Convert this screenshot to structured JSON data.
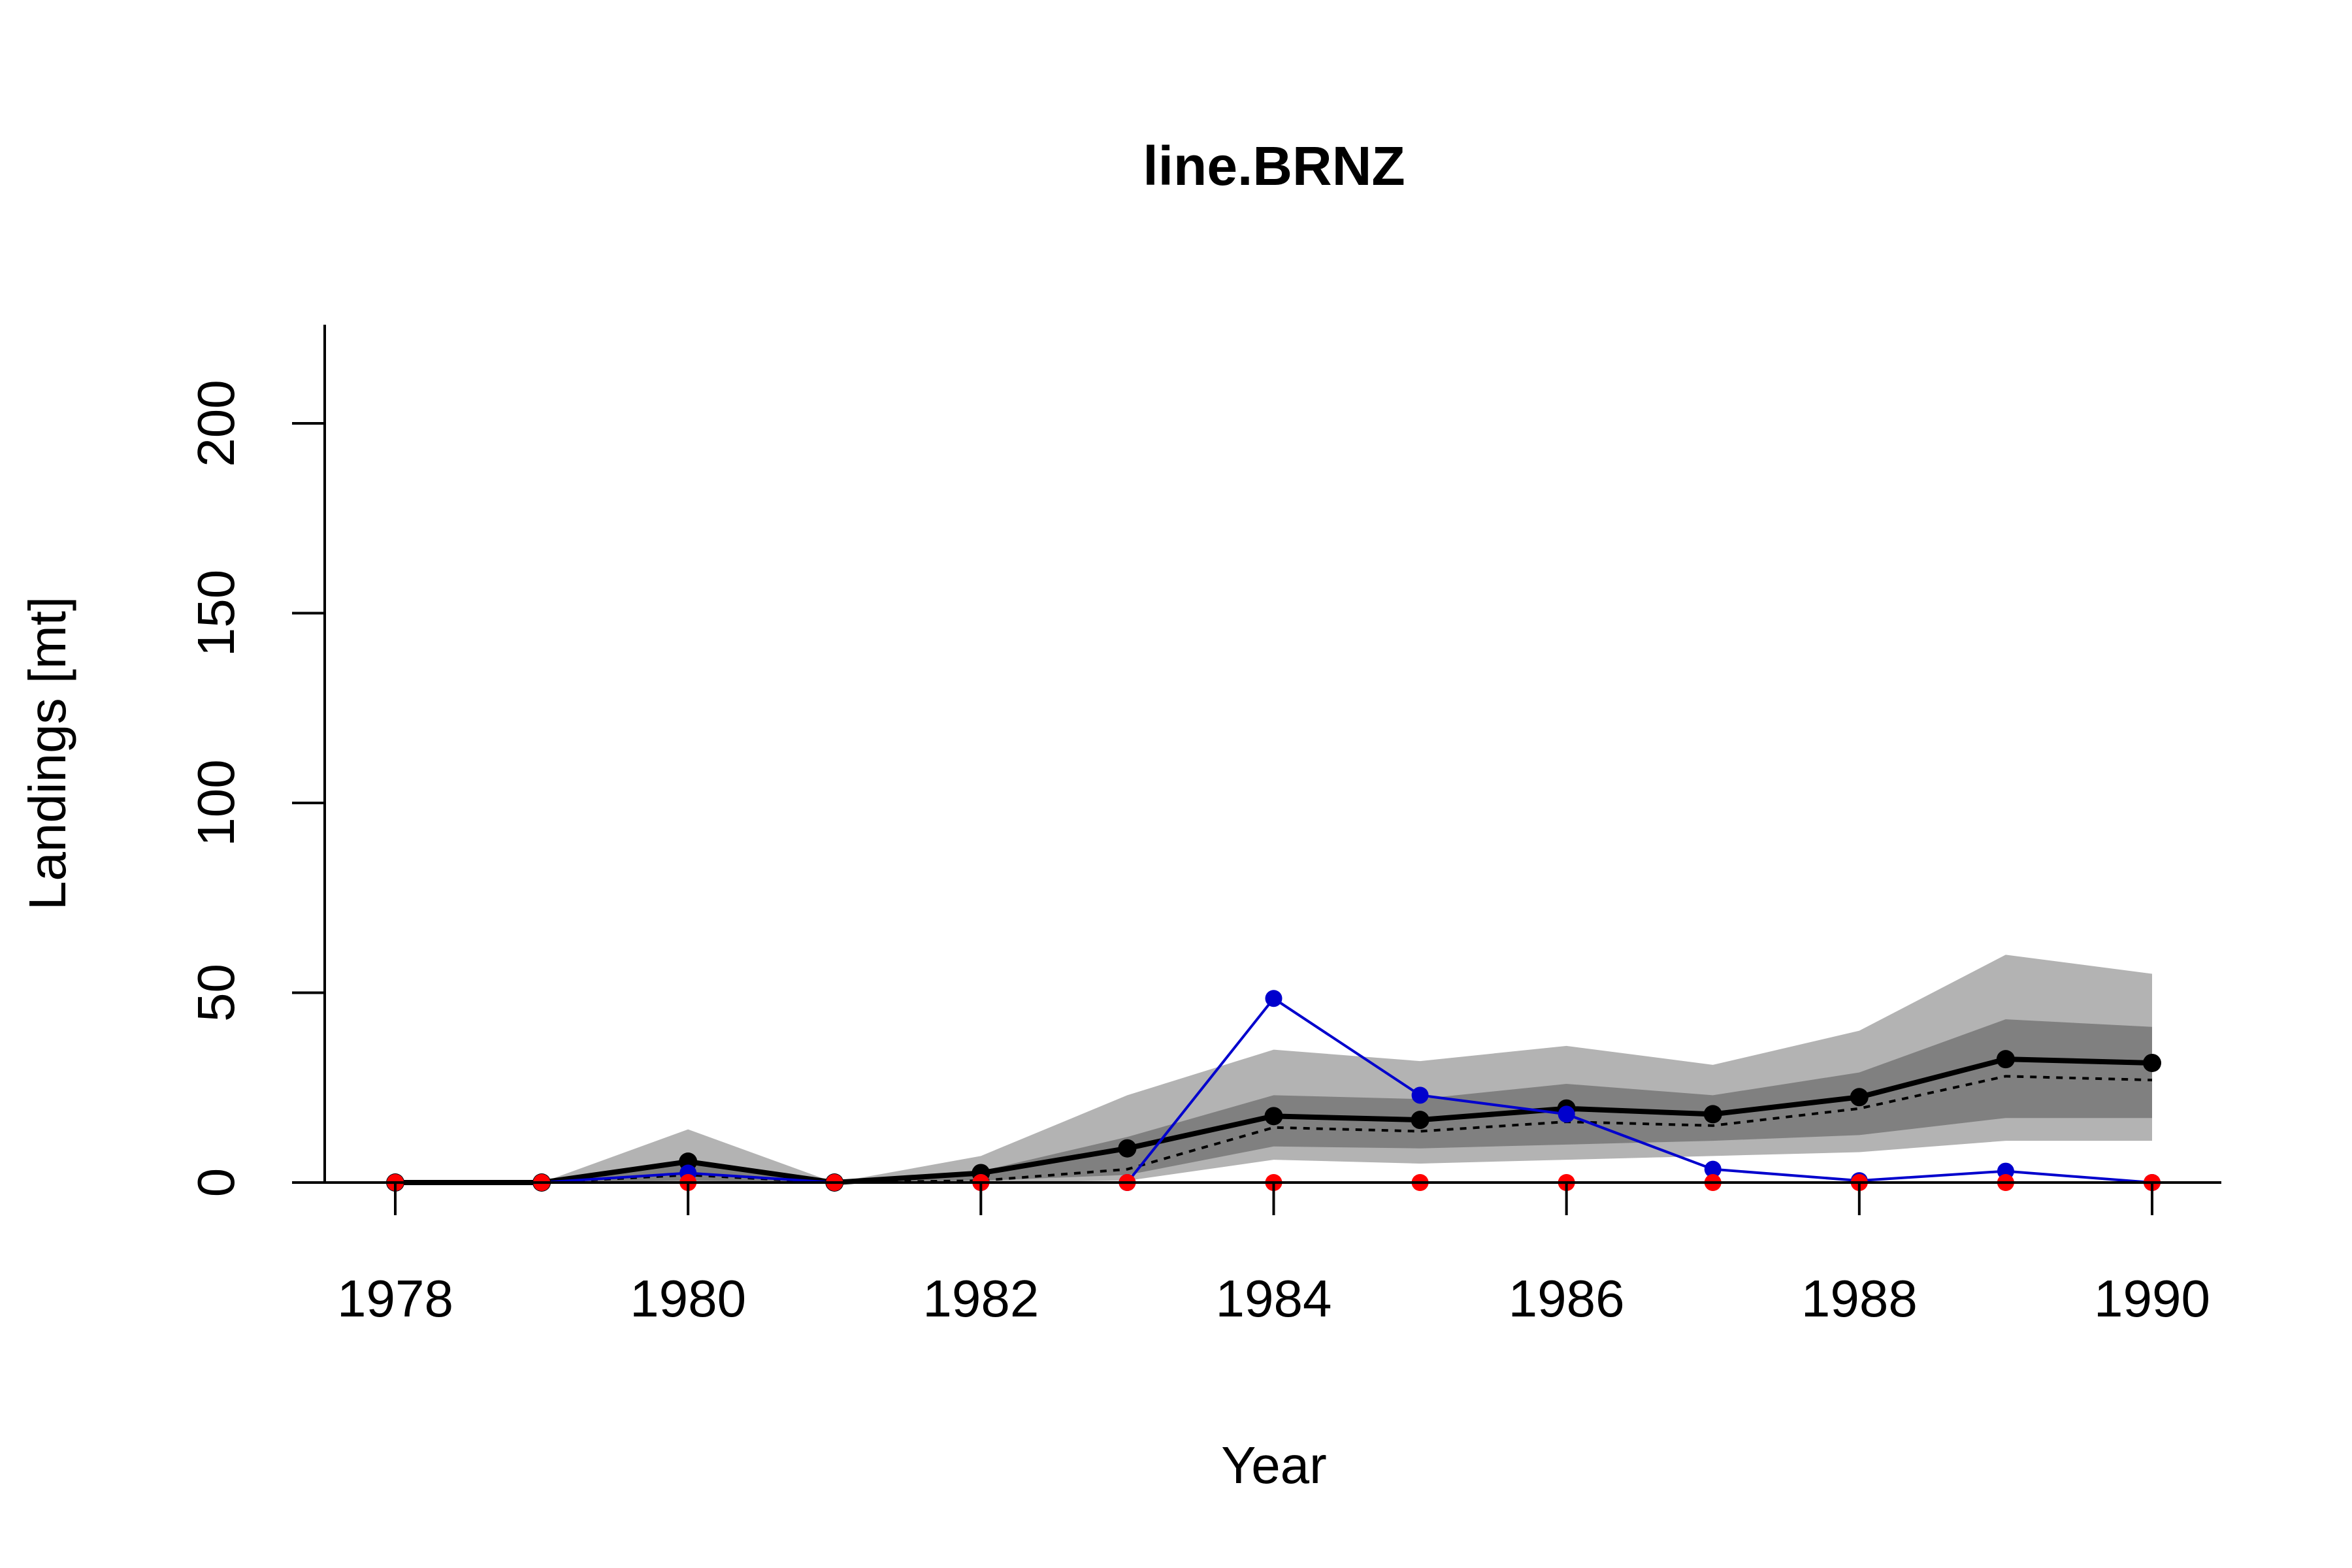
{
  "chart_data": {
    "type": "line",
    "title": "line.BRNZ",
    "xlabel": "Year",
    "ylabel": "Landings [mt]",
    "x": [
      1978,
      1979,
      1980,
      1981,
      1982,
      1983,
      1984,
      1985,
      1986,
      1987,
      1988,
      1989,
      1990
    ],
    "xticks": [
      "1978",
      "1980",
      "1982",
      "1984",
      "1986",
      "1988",
      "1990"
    ],
    "yticks": [
      "0",
      "50",
      "100",
      "150",
      "200"
    ],
    "xlim": [
      1977.5,
      1990.5
    ],
    "ylim": [
      0,
      225
    ],
    "grid": false,
    "bands": [
      {
        "role": "outer interval",
        "color": "#b3b3b3",
        "lower": [
          0,
          0,
          0,
          0,
          0,
          0.5,
          6,
          5,
          6,
          7,
          8,
          11,
          11
        ],
        "upper": [
          0,
          0,
          14,
          0,
          7,
          23,
          35,
          32,
          36,
          31,
          40,
          60,
          55
        ]
      },
      {
        "role": "inner interval",
        "color": "#808080",
        "lower": [
          0,
          0,
          0.5,
          0,
          0.5,
          2,
          9.5,
          9,
          10,
          11,
          12.5,
          17,
          17
        ],
        "upper": [
          0,
          0,
          6,
          0,
          3,
          12,
          23,
          22,
          26,
          23,
          29,
          43,
          41
        ]
      }
    ],
    "series": [
      {
        "color": "#000000",
        "style": "solid-thick",
        "markers": true,
        "values": [
          0,
          0,
          5.5,
          0,
          2.5,
          9,
          17.5,
          16.5,
          19.5,
          18,
          22.5,
          32.5,
          31.5
        ]
      },
      {
        "color": "#000000",
        "style": "dotted",
        "markers": false,
        "values": [
          0,
          0,
          2,
          0,
          0.5,
          3.5,
          14.5,
          13.5,
          16,
          15,
          19.5,
          28,
          27
        ]
      },
      {
        "color": "#0000cd",
        "style": "solid-thin",
        "markers": true,
        "values": [
          0,
          0,
          2.5,
          0,
          0,
          0,
          48.5,
          23,
          18,
          3.5,
          0.5,
          3,
          0
        ]
      },
      {
        "color": "#ff0000",
        "style": "solid-thin",
        "markers": true,
        "values": [
          0,
          0,
          0,
          0,
          0,
          0,
          0,
          0,
          0,
          0,
          0,
          0,
          0
        ]
      }
    ]
  }
}
